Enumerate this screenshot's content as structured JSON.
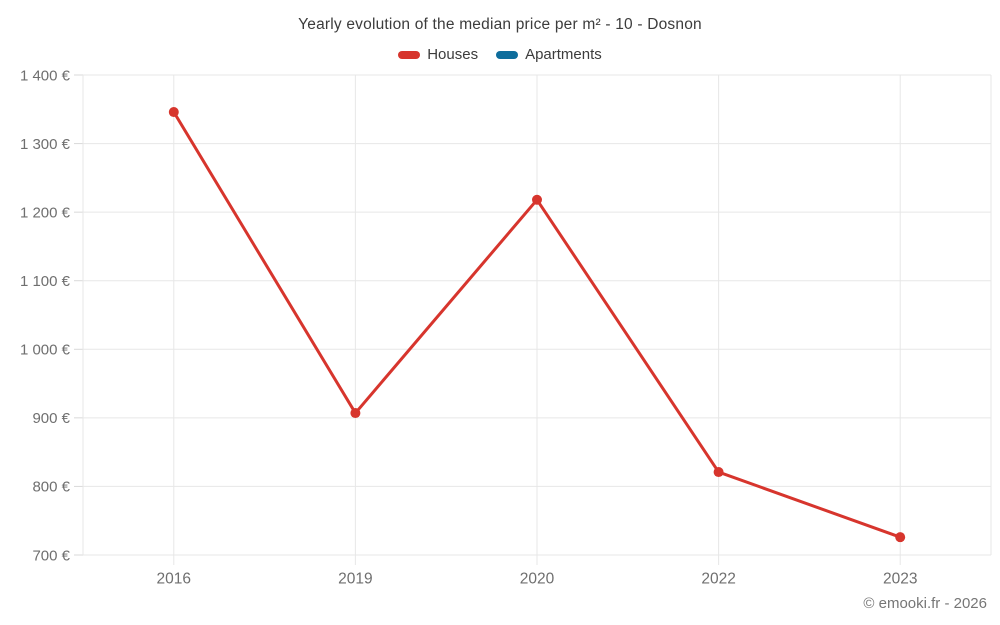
{
  "title": "Yearly evolution of the median price per m² - 10 - Dosnon",
  "legend": {
    "items": [
      {
        "label": "Houses",
        "color": "#d7352d"
      },
      {
        "label": "Apartments",
        "color": "#0e6d9c"
      }
    ]
  },
  "footer": "© emooki.fr - 2026",
  "colors": {
    "background": "#ffffff",
    "grid": "#e7e7e7",
    "tick": "#d9d9d9",
    "axis_text": "#6f6f6f",
    "title_text": "#3c3c3c",
    "houses": "#d7352d",
    "apartments": "#0e6d9c"
  },
  "chart_data": {
    "type": "line",
    "title": "Yearly evolution of the median price per m² - 10 - Dosnon",
    "categories": [
      "2016",
      "2019",
      "2020",
      "2022",
      "2023"
    ],
    "series": [
      {
        "name": "Houses",
        "color": "#d7352d",
        "values": [
          1346,
          907,
          1218,
          821,
          726
        ]
      },
      {
        "name": "Apartments",
        "color": "#0e6d9c",
        "values": []
      }
    ],
    "xlabel": "",
    "ylabel": "",
    "ylim": [
      700,
      1400
    ],
    "y_ticks": [
      {
        "value": 700,
        "label": "700 €"
      },
      {
        "value": 800,
        "label": "800 €"
      },
      {
        "value": 900,
        "label": "900 €"
      },
      {
        "value": 1000,
        "label": "1 000 €"
      },
      {
        "value": 1100,
        "label": "1 100 €"
      },
      {
        "value": 1200,
        "label": "1 200 €"
      },
      {
        "value": 1300,
        "label": "1 300 €"
      },
      {
        "value": 1400,
        "label": "1 400 €"
      }
    ],
    "grid": true,
    "legend_position": "top",
    "marker": "circle",
    "currency": "€"
  }
}
